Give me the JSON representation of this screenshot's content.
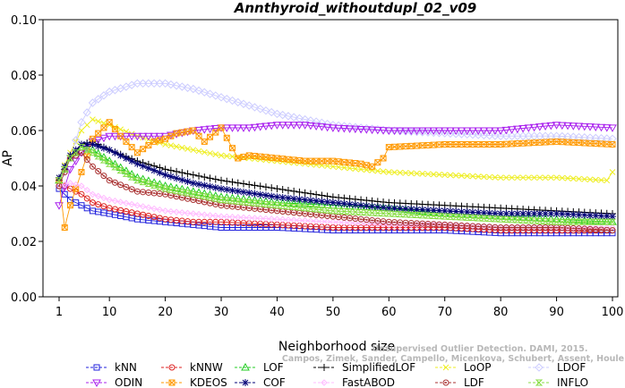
{
  "chart_data": {
    "type": "line",
    "title": "Annthyroid_withoutdupl_02_v09",
    "xlabel": "Neighborhood size",
    "ylabel": "AP",
    "xlim": [
      1,
      100
    ],
    "ylim": [
      0.0,
      0.1
    ],
    "x_ticks": [
      "1",
      "10",
      "20",
      "30",
      "40",
      "50",
      "60",
      "70",
      "80",
      "90",
      "100"
    ],
    "y_ticks": [
      "0.00",
      "0.02",
      "0.04",
      "0.06",
      "0.08",
      "0.10"
    ],
    "credit_line1": "Unsupervised Outlier Detection. DAMI, 2015.",
    "credit_line2": "Campos, Zimek, Sander, Campello, Micenkova, Schubert, Assent, Houle",
    "series": [
      {
        "name": "kNN",
        "color": "#2222dd",
        "marker": "square",
        "points": [
          [
            1,
            0.039
          ],
          [
            2,
            0.037
          ],
          [
            3,
            0.035
          ],
          [
            5,
            0.033
          ],
          [
            7,
            0.031
          ],
          [
            10,
            0.03
          ],
          [
            15,
            0.028
          ],
          [
            20,
            0.027
          ],
          [
            25,
            0.026
          ],
          [
            30,
            0.025
          ],
          [
            40,
            0.025
          ],
          [
            50,
            0.024
          ],
          [
            60,
            0.024
          ],
          [
            70,
            0.024
          ],
          [
            80,
            0.023
          ],
          [
            90,
            0.023
          ],
          [
            100,
            0.023
          ]
        ]
      },
      {
        "name": "kNNW",
        "color": "#dd2222",
        "marker": "circle",
        "points": [
          [
            1,
            0.04
          ],
          [
            2,
            0.04
          ],
          [
            3,
            0.039
          ],
          [
            5,
            0.037
          ],
          [
            7,
            0.034
          ],
          [
            10,
            0.032
          ],
          [
            15,
            0.03
          ],
          [
            20,
            0.028
          ],
          [
            25,
            0.027
          ],
          [
            30,
            0.027
          ],
          [
            40,
            0.026
          ],
          [
            50,
            0.025
          ],
          [
            60,
            0.025
          ],
          [
            70,
            0.025
          ],
          [
            80,
            0.024
          ],
          [
            90,
            0.024
          ],
          [
            100,
            0.024
          ]
        ]
      },
      {
        "name": "LOF",
        "color": "#22cc22",
        "marker": "triangle-up",
        "points": [
          [
            1,
            0.042
          ],
          [
            3,
            0.05
          ],
          [
            5,
            0.054
          ],
          [
            7,
            0.053
          ],
          [
            10,
            0.049
          ],
          [
            15,
            0.043
          ],
          [
            20,
            0.04
          ],
          [
            25,
            0.038
          ],
          [
            30,
            0.036
          ],
          [
            40,
            0.034
          ],
          [
            50,
            0.033
          ],
          [
            60,
            0.032
          ],
          [
            70,
            0.03
          ],
          [
            80,
            0.029
          ],
          [
            90,
            0.028
          ],
          [
            100,
            0.027
          ]
        ]
      },
      {
        "name": "SimplifiedLOF",
        "color": "#000000",
        "marker": "plus",
        "points": [
          [
            1,
            0.042
          ],
          [
            3,
            0.05
          ],
          [
            5,
            0.055
          ],
          [
            7,
            0.056
          ],
          [
            10,
            0.053
          ],
          [
            15,
            0.049
          ],
          [
            20,
            0.046
          ],
          [
            25,
            0.044
          ],
          [
            30,
            0.042
          ],
          [
            40,
            0.039
          ],
          [
            50,
            0.036
          ],
          [
            60,
            0.034
          ],
          [
            70,
            0.033
          ],
          [
            80,
            0.032
          ],
          [
            90,
            0.031
          ],
          [
            100,
            0.03
          ]
        ]
      },
      {
        "name": "LoOP",
        "color": "#eeee22",
        "marker": "x",
        "points": [
          [
            1,
            0.043
          ],
          [
            3,
            0.052
          ],
          [
            5,
            0.06
          ],
          [
            7,
            0.064
          ],
          [
            10,
            0.062
          ],
          [
            15,
            0.058
          ],
          [
            20,
            0.055
          ],
          [
            25,
            0.053
          ],
          [
            30,
            0.051
          ],
          [
            40,
            0.049
          ],
          [
            50,
            0.047
          ],
          [
            60,
            0.045
          ],
          [
            70,
            0.044
          ],
          [
            80,
            0.043
          ],
          [
            90,
            0.043
          ],
          [
            99,
            0.042
          ],
          [
            100,
            0.045
          ]
        ]
      },
      {
        "name": "LDOF",
        "color": "#ccccff",
        "marker": "diamond",
        "points": [
          [
            1,
            0.04
          ],
          [
            3,
            0.05
          ],
          [
            5,
            0.063
          ],
          [
            7,
            0.07
          ],
          [
            10,
            0.074
          ],
          [
            15,
            0.077
          ],
          [
            20,
            0.077
          ],
          [
            25,
            0.075
          ],
          [
            30,
            0.072
          ],
          [
            35,
            0.069
          ],
          [
            40,
            0.066
          ],
          [
            50,
            0.062
          ],
          [
            60,
            0.06
          ],
          [
            70,
            0.059
          ],
          [
            80,
            0.058
          ],
          [
            90,
            0.058
          ],
          [
            100,
            0.057
          ]
        ]
      },
      {
        "name": "ODIN",
        "color": "#aa22ee",
        "marker": "triangle-down",
        "points": [
          [
            1,
            0.033
          ],
          [
            3,
            0.046
          ],
          [
            5,
            0.052
          ],
          [
            7,
            0.056
          ],
          [
            10,
            0.058
          ],
          [
            15,
            0.058
          ],
          [
            20,
            0.058
          ],
          [
            25,
            0.06
          ],
          [
            30,
            0.061
          ],
          [
            35,
            0.061
          ],
          [
            40,
            0.062
          ],
          [
            45,
            0.062
          ],
          [
            50,
            0.061
          ],
          [
            60,
            0.06
          ],
          [
            70,
            0.06
          ],
          [
            80,
            0.06
          ],
          [
            90,
            0.062
          ],
          [
            100,
            0.061
          ]
        ]
      },
      {
        "name": "KDEOS",
        "color": "#ff9900",
        "marker": "box-x",
        "points": [
          [
            1,
            0.042
          ],
          [
            2,
            0.025
          ],
          [
            3,
            0.033
          ],
          [
            5,
            0.045
          ],
          [
            7,
            0.057
          ],
          [
            9,
            0.061
          ],
          [
            10,
            0.063
          ],
          [
            12,
            0.058
          ],
          [
            15,
            0.052
          ],
          [
            18,
            0.056
          ],
          [
            20,
            0.057
          ],
          [
            22,
            0.059
          ],
          [
            25,
            0.06
          ],
          [
            27,
            0.056
          ],
          [
            30,
            0.061
          ],
          [
            33,
            0.05
          ],
          [
            35,
            0.051
          ],
          [
            40,
            0.05
          ],
          [
            45,
            0.049
          ],
          [
            50,
            0.049
          ],
          [
            55,
            0.048
          ],
          [
            57,
            0.047
          ],
          [
            59,
            0.05
          ],
          [
            60,
            0.054
          ],
          [
            70,
            0.055
          ],
          [
            80,
            0.055
          ],
          [
            90,
            0.056
          ],
          [
            100,
            0.055
          ]
        ]
      },
      {
        "name": "COF",
        "color": "#000077",
        "marker": "asterisk",
        "points": [
          [
            1,
            0.043
          ],
          [
            3,
            0.051
          ],
          [
            5,
            0.055
          ],
          [
            7,
            0.055
          ],
          [
            10,
            0.053
          ],
          [
            15,
            0.048
          ],
          [
            20,
            0.044
          ],
          [
            25,
            0.041
          ],
          [
            30,
            0.039
          ],
          [
            40,
            0.036
          ],
          [
            50,
            0.034
          ],
          [
            60,
            0.032
          ],
          [
            70,
            0.031
          ],
          [
            80,
            0.03
          ],
          [
            90,
            0.03
          ],
          [
            100,
            0.029
          ]
        ]
      },
      {
        "name": "FastABOD",
        "color": "#ffbbff",
        "marker": "diamond-small",
        "points": [
          [
            1,
            0.04
          ],
          [
            3,
            0.041
          ],
          [
            5,
            0.04
          ],
          [
            7,
            0.037
          ],
          [
            10,
            0.035
          ],
          [
            15,
            0.033
          ],
          [
            20,
            0.031
          ],
          [
            30,
            0.029
          ],
          [
            40,
            0.028
          ],
          [
            50,
            0.027
          ],
          [
            60,
            0.026
          ],
          [
            70,
            0.026
          ],
          [
            80,
            0.025
          ],
          [
            90,
            0.025
          ],
          [
            100,
            0.025
          ]
        ]
      },
      {
        "name": "LDF",
        "color": "#aa3333",
        "marker": "circle-dot",
        "points": [
          [
            1,
            0.04
          ],
          [
            3,
            0.05
          ],
          [
            5,
            0.052
          ],
          [
            7,
            0.047
          ],
          [
            10,
            0.042
          ],
          [
            15,
            0.038
          ],
          [
            20,
            0.037
          ],
          [
            25,
            0.035
          ],
          [
            30,
            0.033
          ],
          [
            40,
            0.031
          ],
          [
            50,
            0.029
          ],
          [
            60,
            0.027
          ],
          [
            70,
            0.026
          ],
          [
            80,
            0.025
          ],
          [
            90,
            0.025
          ],
          [
            100,
            0.024
          ]
        ]
      },
      {
        "name": "INFLO",
        "color": "#88dd44",
        "marker": "hourglass",
        "points": [
          [
            1,
            0.042
          ],
          [
            3,
            0.05
          ],
          [
            5,
            0.054
          ],
          [
            7,
            0.052
          ],
          [
            10,
            0.048
          ],
          [
            15,
            0.042
          ],
          [
            20,
            0.039
          ],
          [
            25,
            0.037
          ],
          [
            30,
            0.035
          ],
          [
            40,
            0.033
          ],
          [
            50,
            0.031
          ],
          [
            60,
            0.03
          ],
          [
            70,
            0.029
          ],
          [
            80,
            0.028
          ],
          [
            90,
            0.027
          ],
          [
            100,
            0.027
          ]
        ]
      }
    ]
  }
}
